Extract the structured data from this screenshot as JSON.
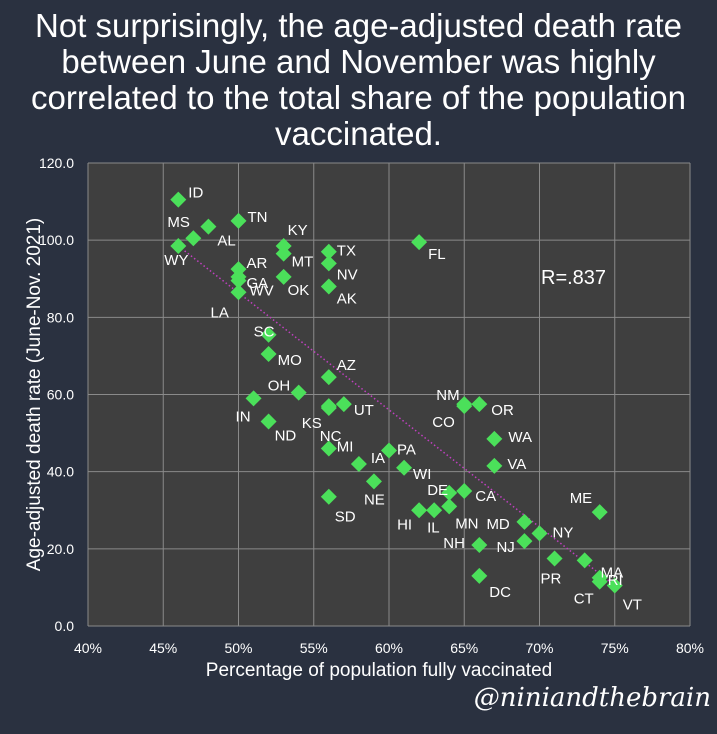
{
  "title": "Not surprisingly, the age-adjusted death rate between June and November was highly correlated to the total share of the population vaccinated.",
  "credit": "@niniandthebrain",
  "colors": {
    "background": "#2a3140",
    "plot_background": "#3f3f3f",
    "grid": "#8a8a8a",
    "marker": "#4be05a",
    "trendline": "#c040c0",
    "text": "#ffffff"
  },
  "chart_data": {
    "type": "scatter",
    "title": "Not surprisingly, the age-adjusted death rate between June and November was highly correlated to the total share of the population vaccinated.",
    "xlabel": "Percentage of population fully vaccinated",
    "ylabel": "Age-adjusted death rate (June-Nov. 2021)",
    "xlim": [
      0.4,
      0.8
    ],
    "ylim": [
      0,
      120
    ],
    "x_ticks": [
      "40%",
      "45%",
      "50%",
      "55%",
      "60%",
      "65%",
      "70%",
      "75%",
      "80%"
    ],
    "y_ticks": [
      "0.0",
      "20.0",
      "40.0",
      "60.0",
      "80.0",
      "100.0",
      "120.0"
    ],
    "grid": true,
    "annotation": "R=.837",
    "marker_shape": "diamond",
    "trendline": {
      "style": "dotted",
      "from": {
        "x": 0.46,
        "y": 98.5
      },
      "to": {
        "x": 0.75,
        "y": 10.5
      }
    },
    "points": [
      {
        "label": "ID",
        "x": 0.46,
        "y": 110.5
      },
      {
        "label": "MS",
        "x": 0.47,
        "y": 100.5
      },
      {
        "label": "AL",
        "x": 0.48,
        "y": 103.5
      },
      {
        "label": "WY",
        "x": 0.46,
        "y": 98.5
      },
      {
        "label": "TN",
        "x": 0.5,
        "y": 105.0
      },
      {
        "label": "AR",
        "x": 0.5,
        "y": 92.5
      },
      {
        "label": "GA",
        "x": 0.5,
        "y": 90.5
      },
      {
        "label": "WV",
        "x": 0.5,
        "y": 89.5
      },
      {
        "label": "LA",
        "x": 0.5,
        "y": 86.5
      },
      {
        "label": "KY",
        "x": 0.53,
        "y": 98.5
      },
      {
        "label": "MT",
        "x": 0.53,
        "y": 96.5
      },
      {
        "label": "OK",
        "x": 0.53,
        "y": 90.5
      },
      {
        "label": "TX",
        "x": 0.56,
        "y": 97.0
      },
      {
        "label": "NV",
        "x": 0.56,
        "y": 94.0
      },
      {
        "label": "AK",
        "x": 0.56,
        "y": 88.0
      },
      {
        "label": "FL",
        "x": 0.62,
        "y": 99.5
      },
      {
        "label": "SC",
        "x": 0.52,
        "y": 75.5
      },
      {
        "label": "MO",
        "x": 0.52,
        "y": 70.5
      },
      {
        "label": "AZ",
        "x": 0.56,
        "y": 64.5
      },
      {
        "label": "OH",
        "x": 0.54,
        "y": 60.5
      },
      {
        "label": "IN",
        "x": 0.51,
        "y": 59.0
      },
      {
        "label": "ND",
        "x": 0.52,
        "y": 53.0
      },
      {
        "label": "KS",
        "x": 0.56,
        "y": 57.0
      },
      {
        "label": "UT",
        "x": 0.57,
        "y": 57.5
      },
      {
        "label": "NC",
        "x": 0.56,
        "y": 56.5
      },
      {
        "label": "MI",
        "x": 0.56,
        "y": 46.0
      },
      {
        "label": "IA",
        "x": 0.58,
        "y": 42.0
      },
      {
        "label": "PA",
        "x": 0.6,
        "y": 45.5
      },
      {
        "label": "WI",
        "x": 0.61,
        "y": 41.0
      },
      {
        "label": "NE",
        "x": 0.59,
        "y": 37.5
      },
      {
        "label": "SD",
        "x": 0.56,
        "y": 33.5
      },
      {
        "label": "NM",
        "x": 0.65,
        "y": 57.5
      },
      {
        "label": "CO",
        "x": 0.65,
        "y": 57.0
      },
      {
        "label": "OR",
        "x": 0.66,
        "y": 57.5
      },
      {
        "label": "WA",
        "x": 0.67,
        "y": 48.5
      },
      {
        "label": "VA",
        "x": 0.67,
        "y": 41.5
      },
      {
        "label": "DE",
        "x": 0.64,
        "y": 34.5
      },
      {
        "label": "CA",
        "x": 0.65,
        "y": 35.0
      },
      {
        "label": "MN",
        "x": 0.64,
        "y": 31.0
      },
      {
        "label": "IL",
        "x": 0.63,
        "y": 30.0
      },
      {
        "label": "HI",
        "x": 0.62,
        "y": 30.0
      },
      {
        "label": "MD",
        "x": 0.69,
        "y": 27.0
      },
      {
        "label": "NY",
        "x": 0.7,
        "y": 24.0
      },
      {
        "label": "NJ",
        "x": 0.69,
        "y": 22.0
      },
      {
        "label": "NH",
        "x": 0.66,
        "y": 21.0
      },
      {
        "label": "DC",
        "x": 0.66,
        "y": 13.0
      },
      {
        "label": "ME",
        "x": 0.74,
        "y": 29.5
      },
      {
        "label": "MA",
        "x": 0.73,
        "y": 17.0
      },
      {
        "label": "PR",
        "x": 0.71,
        "y": 17.5
      },
      {
        "label": "RI",
        "x": 0.74,
        "y": 12.5
      },
      {
        "label": "CT",
        "x": 0.74,
        "y": 11.5
      },
      {
        "label": "VT",
        "x": 0.75,
        "y": 10.5
      }
    ]
  }
}
